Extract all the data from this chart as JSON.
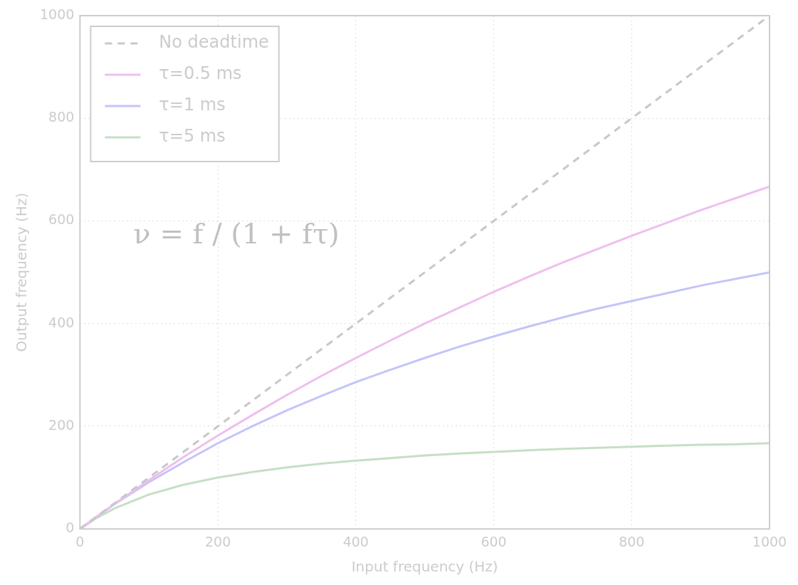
{
  "chart_data": {
    "type": "line",
    "xlabel": "Input frequency (Hz)",
    "ylabel": "Output frequency (Hz)",
    "x": [
      0,
      25,
      50,
      100,
      150,
      200,
      250,
      300,
      350,
      400,
      450,
      500,
      550,
      600,
      650,
      700,
      750,
      800,
      850,
      900,
      950,
      1000
    ],
    "series": [
      {
        "name": "No deadtime",
        "color": "#c8c8c8",
        "line_style": "dashed",
        "values": [
          0,
          25,
          50,
          100,
          150,
          200,
          250,
          300,
          350,
          400,
          450,
          500,
          550,
          600,
          650,
          700,
          750,
          800,
          850,
          900,
          950,
          1000
        ]
      },
      {
        "name": "τ=0.5 ms",
        "color": "#eebfee",
        "line_style": "solid",
        "values": [
          0,
          25,
          49,
          95,
          140,
          182,
          222,
          261,
          298,
          333,
          367,
          400,
          431,
          462,
          491,
          519,
          545,
          571,
          596,
          621,
          644,
          667
        ]
      },
      {
        "name": "τ=1 ms",
        "color": "#c4c4fa",
        "line_style": "solid",
        "values": [
          0,
          24,
          48,
          91,
          130,
          167,
          200,
          231,
          259,
          286,
          310,
          333,
          355,
          375,
          394,
          412,
          429,
          444,
          459,
          474,
          487,
          500
        ]
      },
      {
        "name": "τ=5 ms",
        "color": "#c4e0c4",
        "line_style": "solid",
        "values": [
          0,
          22,
          40,
          67,
          86,
          100,
          111,
          120,
          127,
          133,
          138,
          143,
          147,
          150,
          153,
          156,
          158,
          160,
          162,
          164,
          165,
          167
        ]
      }
    ],
    "xlim": [
      0,
      1000
    ],
    "ylim": [
      0,
      1000
    ],
    "xticks": [
      0,
      200,
      400,
      600,
      800,
      1000
    ],
    "yticks": [
      0,
      200,
      400,
      600,
      800,
      1000
    ],
    "grid": true,
    "legend": "top left",
    "marker": "none",
    "annotations": [
      "ν = f / (1 + fτ)"
    ]
  }
}
